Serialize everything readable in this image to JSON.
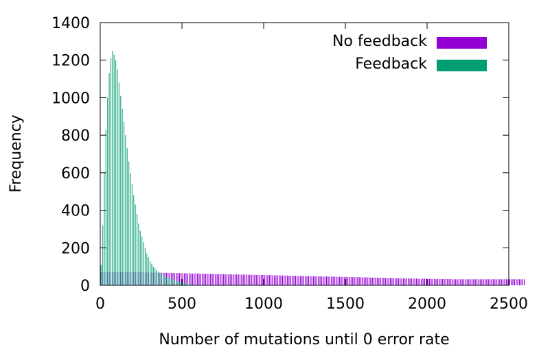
{
  "chart_data": {
    "type": "bar",
    "xlabel": "Number of mutations until 0 error rate",
    "ylabel": "Frequency",
    "xlim": [
      0,
      2500
    ],
    "ylim": [
      0,
      1400
    ],
    "xticks": [
      "0",
      "500",
      "1000",
      "1500",
      "2000",
      "2500"
    ],
    "xtick_values": [
      0,
      500,
      1000,
      1500,
      2000,
      2500
    ],
    "yticks": [
      "0",
      "200",
      "400",
      "600",
      "800",
      "1000",
      "1200",
      "1400"
    ],
    "ytick_values": [
      0,
      200,
      400,
      600,
      800,
      1000,
      1200,
      1400
    ],
    "grid": false,
    "legend_position": "top-right",
    "bin_width": 10,
    "series": [
      {
        "name": "No feedback",
        "color": "#9400d3",
        "bin_start": 0,
        "values": [
          70,
          70,
          70,
          70,
          70,
          70,
          70,
          70,
          70,
          70,
          70,
          70,
          70,
          70,
          70,
          70,
          70,
          70,
          70,
          70,
          70,
          70,
          70,
          70,
          70,
          69,
          69,
          69,
          69,
          69,
          68,
          68,
          68,
          68,
          68,
          67,
          67,
          67,
          67,
          67,
          66,
          66,
          66,
          66,
          66,
          65,
          65,
          65,
          65,
          65,
          64,
          64,
          64,
          64,
          64,
          63,
          63,
          63,
          63,
          63,
          62,
          62,
          62,
          62,
          62,
          61,
          61,
          61,
          61,
          61,
          60,
          60,
          60,
          60,
          60,
          59,
          59,
          59,
          59,
          59,
          58,
          58,
          58,
          58,
          58,
          57,
          57,
          57,
          57,
          57,
          56,
          56,
          56,
          56,
          56,
          55,
          55,
          55,
          55,
          55,
          54,
          54,
          54,
          54,
          54,
          53,
          53,
          53,
          53,
          53,
          52,
          52,
          52,
          52,
          52,
          51,
          51,
          51,
          51,
          51,
          50,
          50,
          50,
          50,
          50,
          49,
          49,
          49,
          49,
          49,
          48,
          48,
          48,
          48,
          48,
          47,
          47,
          47,
          47,
          47,
          46,
          46,
          46,
          46,
          46,
          45,
          45,
          45,
          45,
          45,
          44,
          44,
          44,
          44,
          44,
          43,
          43,
          43,
          43,
          43,
          42,
          42,
          42,
          42,
          42,
          41,
          41,
          41,
          41,
          41,
          40,
          40,
          40,
          40,
          40,
          39,
          39,
          39,
          39,
          39,
          38,
          38,
          38,
          38,
          38,
          37,
          37,
          37,
          37,
          37,
          36,
          36,
          36,
          36,
          36,
          35,
          35,
          35,
          35,
          35,
          34,
          34,
          34,
          34,
          34,
          33,
          33,
          33,
          33,
          33,
          33,
          33,
          33,
          33,
          33,
          32,
          32,
          32,
          32,
          32,
          32,
          32,
          32,
          32,
          32,
          32,
          32,
          32,
          32,
          32,
          32,
          32,
          32,
          32,
          32,
          32,
          32,
          32,
          32,
          32,
          32,
          32,
          32,
          32,
          32,
          32,
          32,
          32,
          32,
          32,
          32,
          32,
          32,
          32,
          32,
          32,
          32,
          32,
          32,
          32
        ]
      },
      {
        "name": "Feedback",
        "color": "#009e73",
        "bin_start": 0,
        "values": [
          110,
          320,
          600,
          830,
          1000,
          1130,
          1210,
          1250,
          1230,
          1200,
          1150,
          1080,
          1010,
          940,
          870,
          800,
          730,
          660,
          600,
          540,
          480,
          430,
          380,
          330,
          290,
          260,
          230,
          200,
          170,
          150,
          130,
          115,
          100,
          90,
          80,
          72,
          66,
          60,
          55,
          50,
          46,
          42,
          38,
          34,
          30,
          27,
          24,
          21,
          18,
          16,
          14,
          12,
          10,
          8,
          6,
          5,
          4,
          3,
          2,
          1,
          1,
          1,
          1,
          0,
          0,
          0,
          0,
          0,
          0,
          0,
          0,
          0,
          0,
          0,
          0,
          0,
          0,
          0,
          0,
          0
        ]
      }
    ]
  }
}
